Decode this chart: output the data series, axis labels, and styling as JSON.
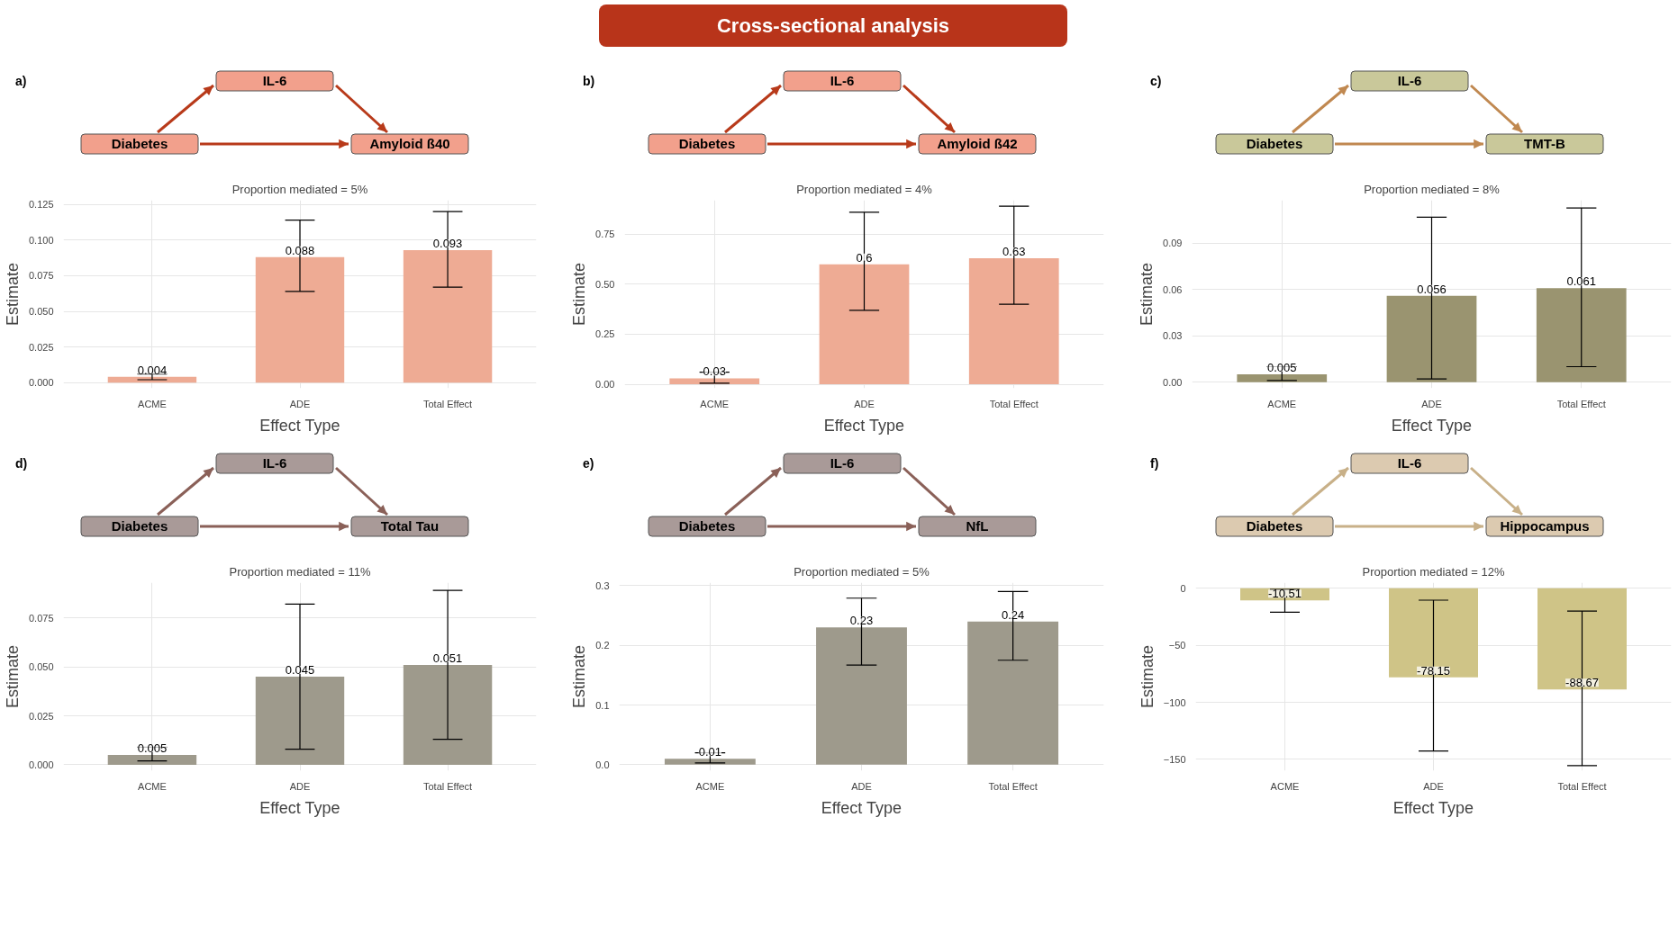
{
  "chart_data": [
    {
      "type": "other",
      "title": "Cross-sectional analysis"
    },
    {
      "type": "bar",
      "title": "Proportion mediated = 5%",
      "xlabel": "Effect Type",
      "ylabel": "Estimate",
      "annotations": [
        "a)",
        "IL-6",
        "Diabetes",
        "Amyloid ß40"
      ],
      "categories": [
        "ACME",
        "ADE",
        "Total Effect"
      ],
      "values": [
        0.004,
        0.088,
        0.093
      ],
      "color": "#eeab94",
      "errors": [
        [
          0.002,
          0.006
        ],
        [
          0.064,
          0.114
        ],
        [
          0.067,
          0.12
        ]
      ],
      "data_labels": true,
      "ylim": [
        -0.004,
        0.128
      ],
      "yticks": [
        {
          "value": 0,
          "label": "0.000"
        },
        0.025,
        {
          "value": 0.05,
          "label": "0.050"
        },
        0.075,
        {
          "value": 0.1,
          "label": "0.100"
        },
        0.125
      ],
      "grid": true
    },
    {
      "type": "bar",
      "title": "Proportion mediated = 4%",
      "xlabel": "Effect Type",
      "ylabel": "Estimate",
      "annotations": [
        "b)",
        "IL-6",
        "Diabetes",
        "Amyloid ß42"
      ],
      "categories": [
        "ACME",
        "ADE",
        "Total Effect"
      ],
      "values": [
        0.03,
        0.6,
        0.63
      ],
      "color": "#eeab94",
      "errors": [
        [
          0.005,
          0.06
        ],
        [
          0.37,
          0.86
        ],
        [
          0.4,
          0.89
        ]
      ],
      "data_labels": true,
      "ylim": [
        -0.02,
        0.92
      ],
      "yticks": [
        {
          "value": 0,
          "label": "0.00"
        },
        0.25,
        {
          "value": 0.5,
          "label": "0.50"
        },
        0.75
      ],
      "grid": true
    },
    {
      "type": "bar",
      "title": "Proportion mediated = 8%",
      "xlabel": "Effect Type",
      "ylabel": "Estimate",
      "annotations": [
        "c)",
        "IL-6",
        "Diabetes",
        "TMT-B"
      ],
      "categories": [
        "ACME",
        "ADE",
        "Total Effect"
      ],
      "values": [
        0.005,
        0.056,
        0.061
      ],
      "color": "#9a9470",
      "errors": [
        [
          0.001,
          0.01
        ],
        [
          0.002,
          0.107
        ],
        [
          0.01,
          0.113
        ]
      ],
      "data_labels": true,
      "ylim": [
        -0.004,
        0.118
      ],
      "yticks": [
        {
          "value": 0,
          "label": "0.00"
        },
        0.03,
        0.06,
        0.09
      ],
      "grid": true
    },
    {
      "type": "bar",
      "title": "Proportion mediated = 11%",
      "xlabel": "Effect Type",
      "ylabel": "Estimate",
      "annotations": [
        "d)",
        "IL-6",
        "Diabetes",
        "Total Tau"
      ],
      "categories": [
        "ACME",
        "ADE",
        "Total Effect"
      ],
      "values": [
        0.005,
        0.045,
        0.051
      ],
      "color": "#9e9a8c",
      "errors": [
        [
          0.002,
          0.009
        ],
        [
          0.008,
          0.082
        ],
        [
          0.013,
          0.089
        ]
      ],
      "data_labels": true,
      "ylim": [
        -0.003,
        0.093
      ],
      "yticks": [
        {
          "value": 0,
          "label": "0.000"
        },
        0.025,
        {
          "value": 0.05,
          "label": "0.050"
        },
        0.075
      ],
      "grid": true
    },
    {
      "type": "bar",
      "title": "Proportion mediated = 5%",
      "xlabel": "Effect Type",
      "ylabel": "Estimate",
      "annotations": [
        "e)",
        "IL-6",
        "Diabetes",
        "NfL"
      ],
      "categories": [
        "ACME",
        "ADE",
        "Total Effect"
      ],
      "values": [
        0.01,
        0.23,
        0.24
      ],
      "color": "#9e9a8c",
      "errors": [
        [
          0.003,
          0.02
        ],
        [
          0.167,
          0.279
        ],
        [
          0.175,
          0.29
        ]
      ],
      "data_labels": true,
      "ylim": [
        -0.01,
        0.305
      ],
      "yticks": [
        {
          "value": 0,
          "label": "0.0"
        },
        0.1,
        0.2,
        0.3
      ],
      "grid": true
    },
    {
      "type": "bar",
      "title": "Proportion mediated = 12%",
      "xlabel": "Effect Type",
      "ylabel": "Estimate",
      "annotations": [
        "f)",
        "IL-6",
        "Diabetes",
        "Hippocampus"
      ],
      "categories": [
        "ACME",
        "ADE",
        "Total Effect"
      ],
      "values": [
        -10.51,
        -78.15,
        -88.67
      ],
      "color": "#cfc487",
      "errors": [
        [
          -21,
          -1
        ],
        [
          -142.7,
          -10.4
        ],
        [
          -155.6,
          -20
        ]
      ],
      "data_labels": true,
      "ylim": [
        -160,
        5
      ],
      "yticks": [
        -150,
        -100,
        -50,
        0
      ],
      "grid": true
    }
  ]
}
